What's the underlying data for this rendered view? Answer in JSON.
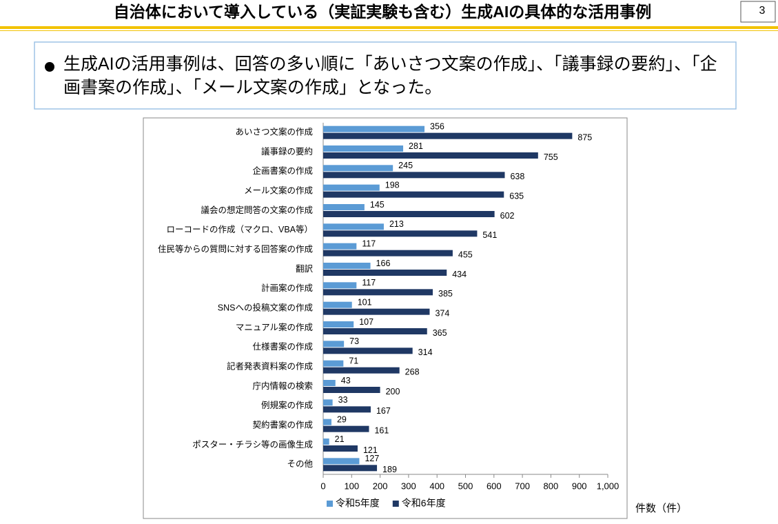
{
  "header": {
    "title": "自治体において導入している（実証実験も含む）生成AIの具体的な活用事例",
    "page_number": "3"
  },
  "summary": {
    "bullet": "生成AIの活用事例は、回答の多い順に「あいさつ文案の作成」、「議事録の要約」、「企画書案の作成」、「メール文案の作成」となった。"
  },
  "chart_data": {
    "type": "hbar",
    "categories": [
      "あいさつ文案の作成",
      "議事録の要約",
      "企画書案の作成",
      "メール文案の作成",
      "議会の想定問答の文案の作成",
      "ローコードの作成（マクロ、VBA等）",
      "住民等からの質問に対する回答案の作成",
      "翻訳",
      "計画案の作成",
      "SNSへの投稿文案の作成",
      "マニュアル案の作成",
      "仕様書案の作成",
      "記者発表資料案の作成",
      "庁内情報の検索",
      "例規案の作成",
      "契約書案の作成",
      "ポスター・チラシ等の画像生成",
      "その他"
    ],
    "series": [
      {
        "name": "令和5年度",
        "color": "#5b9bd5",
        "values": [
          356,
          281,
          245,
          198,
          145,
          213,
          117,
          166,
          117,
          101,
          107,
          73,
          71,
          43,
          33,
          29,
          21,
          127
        ]
      },
      {
        "name": "令和6年度",
        "color": "#1f3864",
        "values": [
          875,
          755,
          638,
          635,
          602,
          541,
          455,
          434,
          385,
          374,
          365,
          314,
          268,
          200,
          167,
          161,
          121,
          189
        ]
      }
    ],
    "xlim": [
      0,
      1000
    ],
    "xticks": [
      0,
      100,
      200,
      300,
      400,
      500,
      600,
      700,
      800,
      900,
      {
        "value": 1000,
        "label": "1,000"
      }
    ],
    "x_label": "件数（件）",
    "legend": "bottom"
  }
}
